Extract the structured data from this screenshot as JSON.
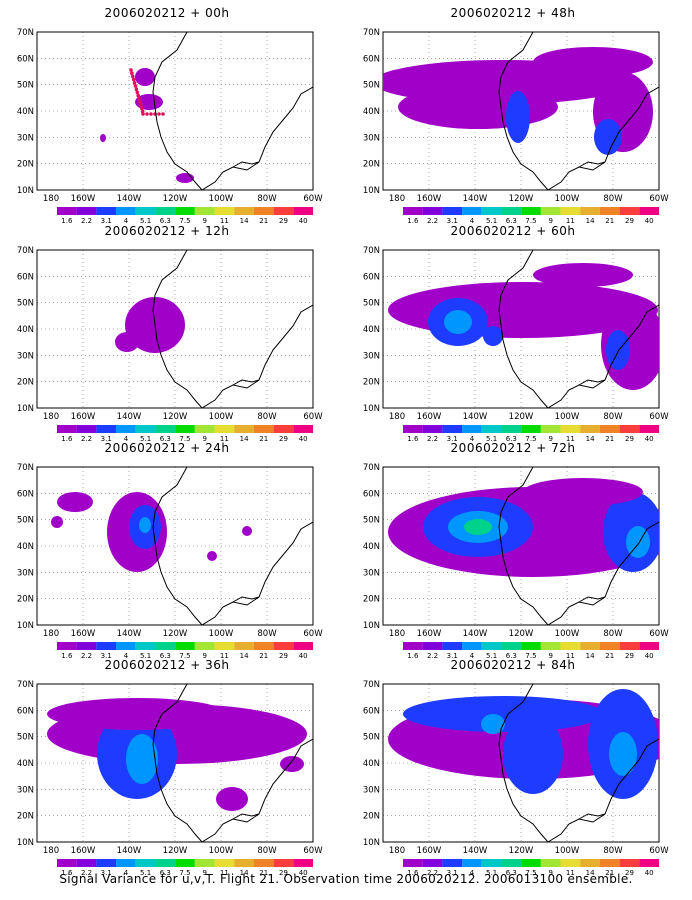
{
  "footer_caption": "Signal Variance for u,v,T. Flight 21. Observation time 2006020212. 2006013100 ensemble.",
  "lat_labels": [
    "10N",
    "20N",
    "30N",
    "40N",
    "50N",
    "60N",
    "70N"
  ],
  "lon_labels": [
    "180",
    "160W",
    "140W",
    "120W",
    "100W",
    "80W",
    "60W"
  ],
  "colorbar": {
    "labels": [
      "1.6",
      "2.2",
      "3.1",
      "4",
      "5.1",
      "6.3",
      "7.5",
      "9",
      "11",
      "14",
      "21",
      "29",
      "40"
    ],
    "colors": [
      "#a000c8",
      "#8200dc",
      "#1e3cff",
      "#0096ff",
      "#00c8c8",
      "#00d28c",
      "#00dc00",
      "#a0e632",
      "#e6dc32",
      "#e6af2d",
      "#f08228",
      "#fa3c3c",
      "#f00082"
    ]
  },
  "chart_data": [
    {
      "type": "heatmap",
      "title": "2006020212 + 00h",
      "x_range": [
        "180",
        "60W"
      ],
      "y_range": [
        "10N",
        "70N"
      ],
      "colorbar": "1.6–40"
    },
    {
      "type": "heatmap",
      "title": "2006020212 + 48h",
      "x_range": [
        "180",
        "60W"
      ],
      "y_range": [
        "10N",
        "70N"
      ],
      "colorbar": "1.6–40"
    },
    {
      "type": "heatmap",
      "title": "2006020212 + 12h",
      "x_range": [
        "180",
        "60W"
      ],
      "y_range": [
        "10N",
        "70N"
      ],
      "colorbar": "1.6–40"
    },
    {
      "type": "heatmap",
      "title": "2006020212 + 60h",
      "x_range": [
        "180",
        "60W"
      ],
      "y_range": [
        "10N",
        "70N"
      ],
      "colorbar": "1.6–40"
    },
    {
      "type": "heatmap",
      "title": "2006020212 + 24h",
      "x_range": [
        "180",
        "60W"
      ],
      "y_range": [
        "10N",
        "70N"
      ],
      "colorbar": "1.6–40"
    },
    {
      "type": "heatmap",
      "title": "2006020212 + 72h",
      "x_range": [
        "180",
        "60W"
      ],
      "y_range": [
        "10N",
        "70N"
      ],
      "colorbar": "1.6–40"
    },
    {
      "type": "heatmap",
      "title": "2006020212 + 36h",
      "x_range": [
        "180",
        "60W"
      ],
      "y_range": [
        "10N",
        "70N"
      ],
      "colorbar": "1.6–40"
    },
    {
      "type": "heatmap",
      "title": "2006020212 + 84h",
      "x_range": [
        "180",
        "60W"
      ],
      "y_range": [
        "10N",
        "70N"
      ],
      "colorbar": "1.6–40"
    }
  ]
}
